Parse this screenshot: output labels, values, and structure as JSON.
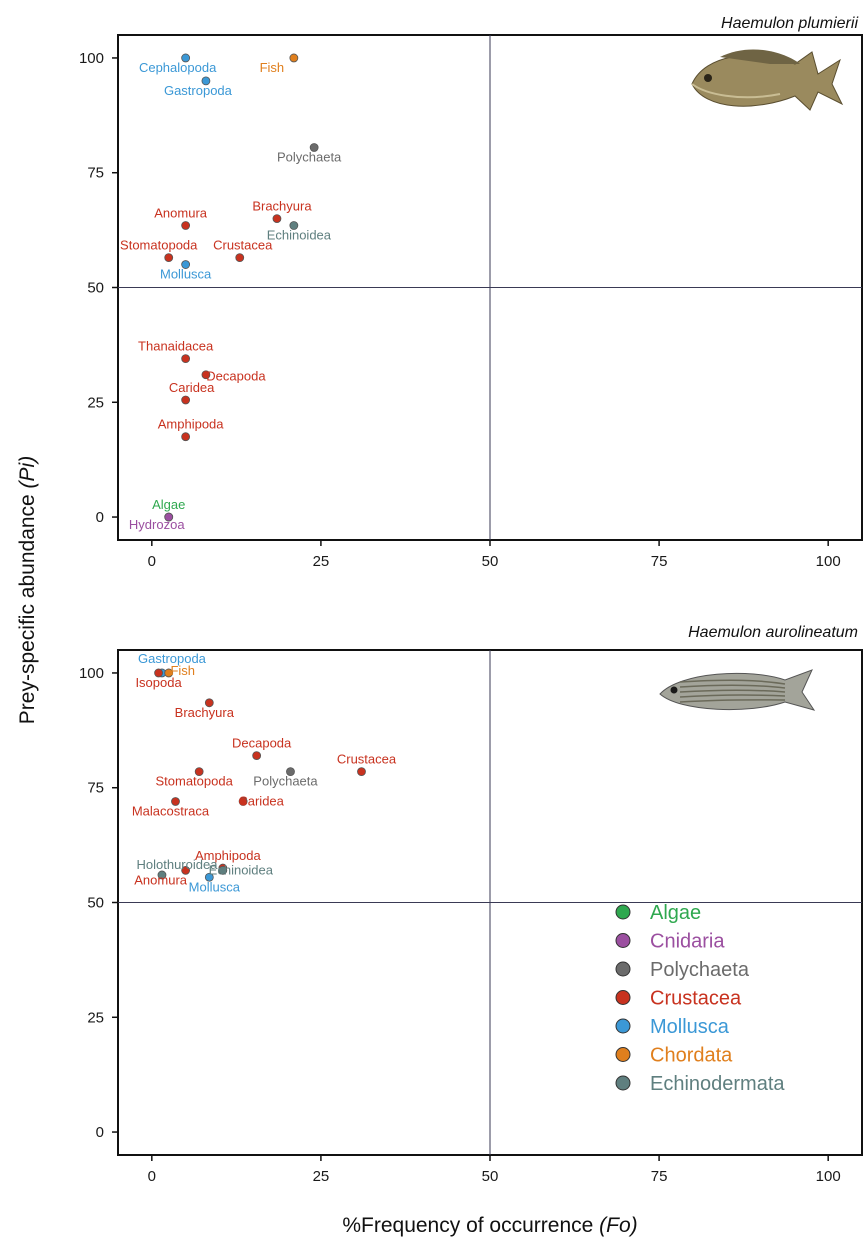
{
  "groups": {
    "Algae": "#2fa84f",
    "Cnidaria": "#9b4fa0",
    "Polychaeta": "#6b6b6b",
    "Crustacea": "#c8321f",
    "Mollusca": "#3b98d6",
    "Chordata": "#e07f1d",
    "Echinodermata": "#5f7f7f"
  },
  "legend": [
    "Algae",
    "Cnidaria",
    "Polychaeta",
    "Crustacea",
    "Mollusca",
    "Chordata",
    "Echinodermata"
  ],
  "xlabel_main": "%Frequency of occurrence",
  "xlabel_sym": "(Fo)",
  "ylabel_main": "Prey-specific abundance",
  "ylabel_sym": "(Pi)",
  "chart_data": [
    {
      "type": "scatter",
      "title": "Haemulon plumierii",
      "xlim": [
        -5,
        105
      ],
      "ylim": [
        -5,
        105
      ],
      "xticks": [
        0,
        25,
        50,
        75,
        100
      ],
      "yticks": [
        0,
        25,
        50,
        75,
        100
      ],
      "reference_lines": {
        "x": 50,
        "y": 50
      },
      "points": [
        {
          "label": "Cephalopoda",
          "group": "Mollusca",
          "x": 5,
          "y": 100
        },
        {
          "label": "Gastropoda",
          "group": "Mollusca",
          "x": 8,
          "y": 95
        },
        {
          "label": "Fish",
          "group": "Chordata",
          "x": 21,
          "y": 100
        },
        {
          "label": "Polychaeta",
          "group": "Polychaeta",
          "x": 24,
          "y": 80.5
        },
        {
          "label": "Brachyura",
          "group": "Crustacea",
          "x": 18.5,
          "y": 65
        },
        {
          "label": "Echinoidea",
          "group": "Echinodermata",
          "x": 21,
          "y": 63.5
        },
        {
          "label": "Anomura",
          "group": "Crustacea",
          "x": 5,
          "y": 63.5
        },
        {
          "label": "Stomatopoda",
          "group": "Crustacea",
          "x": 2.5,
          "y": 56.5
        },
        {
          "label": "Crustacea",
          "group": "Crustacea",
          "x": 13,
          "y": 56.5
        },
        {
          "label": "Mollusca",
          "group": "Mollusca",
          "x": 5,
          "y": 55
        },
        {
          "label": "Thanaidacea",
          "group": "Crustacea",
          "x": 5,
          "y": 34.5
        },
        {
          "label": "Decapoda",
          "group": "Crustacea",
          "x": 8,
          "y": 31
        },
        {
          "label": "Caridea",
          "group": "Crustacea",
          "x": 5,
          "y": 25.5
        },
        {
          "label": "Amphipoda",
          "group": "Crustacea",
          "x": 5,
          "y": 17.5
        },
        {
          "label": "Algae",
          "group": "Algae",
          "x": 2.5,
          "y": 0
        },
        {
          "label": "Hydrozoa",
          "group": "Cnidaria",
          "x": 2.5,
          "y": 0
        }
      ]
    },
    {
      "type": "scatter",
      "title": "Haemulon aurolineatum",
      "xlim": [
        -5,
        105
      ],
      "ylim": [
        -5,
        105
      ],
      "xticks": [
        0,
        25,
        50,
        75,
        100
      ],
      "yticks": [
        0,
        25,
        50,
        75,
        100
      ],
      "reference_lines": {
        "x": 50,
        "y": 50
      },
      "points": [
        {
          "label": "Gastropoda",
          "group": "Mollusca",
          "x": 1.5,
          "y": 100
        },
        {
          "label": "Isopoda",
          "group": "Crustacea",
          "x": 1,
          "y": 100
        },
        {
          "label": "Fish",
          "group": "Chordata",
          "x": 2.5,
          "y": 100
        },
        {
          "label": "Brachyura",
          "group": "Crustacea",
          "x": 8.5,
          "y": 93.5
        },
        {
          "label": "Decapoda",
          "group": "Crustacea",
          "x": 15.5,
          "y": 82
        },
        {
          "label": "Crustacea",
          "group": "Crustacea",
          "x": 31,
          "y": 78.5
        },
        {
          "label": "Stomatopoda",
          "group": "Crustacea",
          "x": 7,
          "y": 78.5
        },
        {
          "label": "Polychaeta",
          "group": "Polychaeta",
          "x": 20.5,
          "y": 78.5
        },
        {
          "label": "Malacostraca",
          "group": "Crustacea",
          "x": 3.5,
          "y": 72
        },
        {
          "label": "Caridea",
          "group": "Crustacea",
          "x": 13.5,
          "y": 72
        },
        {
          "label": "Amphipoda",
          "group": "Crustacea",
          "x": 10.5,
          "y": 57.5
        },
        {
          "label": "Echinoidea",
          "group": "Echinodermata",
          "x": 10.5,
          "y": 57
        },
        {
          "label": "Holothuroidea",
          "group": "Echinodermata",
          "x": 1.5,
          "y": 56
        },
        {
          "label": "Anomura",
          "group": "Crustacea",
          "x": 5,
          "y": 57
        },
        {
          "label": "Mollusca",
          "group": "Mollusca",
          "x": 8.5,
          "y": 55.5
        }
      ]
    }
  ]
}
